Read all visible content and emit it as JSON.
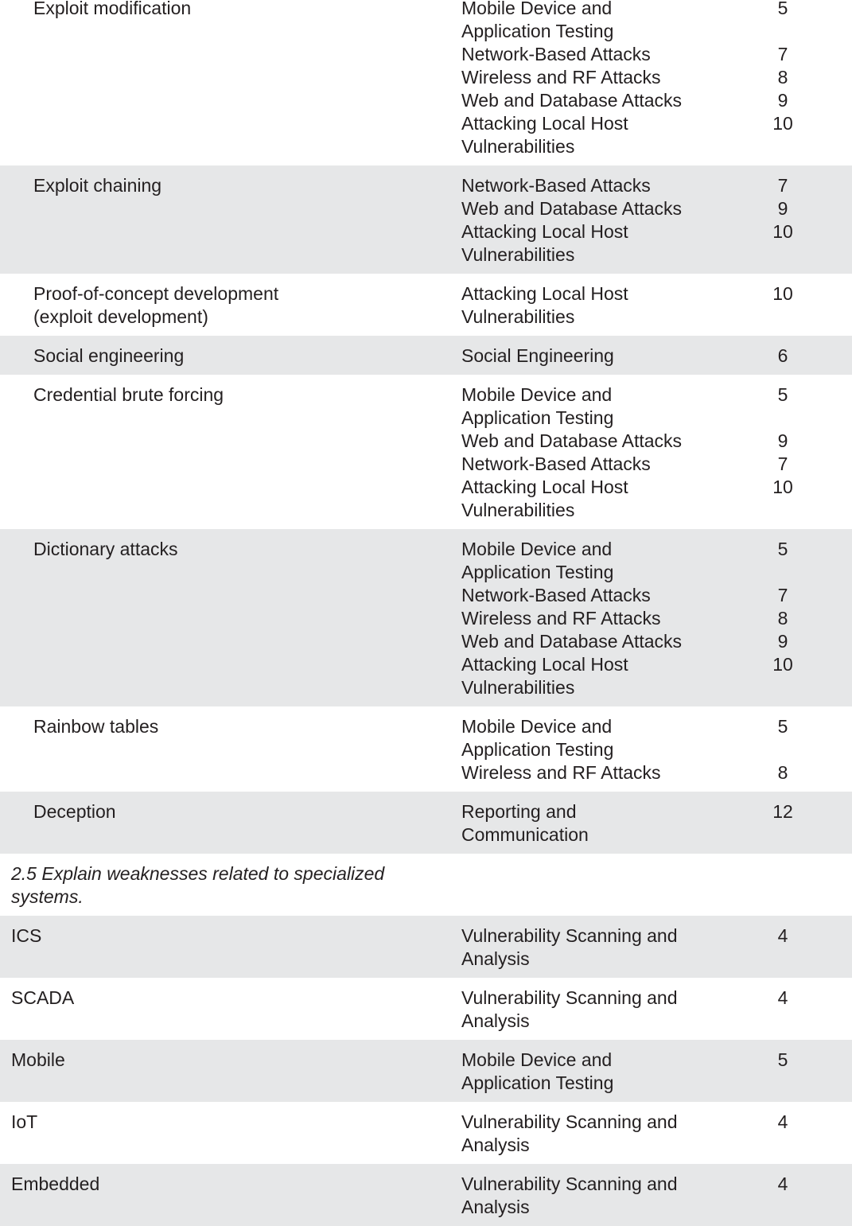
{
  "sections": [
    {
      "items": [
        {
          "label": "Exploit modification",
          "entries": [
            {
              "chapter": "Mobile Device and Application Testing",
              "number": 5
            },
            {
              "chapter": "Network-Based Attacks",
              "number": 7
            },
            {
              "chapter": "Wireless and RF Attacks",
              "number": 8
            },
            {
              "chapter": "Web and Database Attacks",
              "number": 9
            },
            {
              "chapter": "Attacking Local Host Vulnerabilities",
              "number": 10
            }
          ]
        },
        {
          "label": "Exploit chaining",
          "entries": [
            {
              "chapter": "Network-Based Attacks",
              "number": 7
            },
            {
              "chapter": "Web and Database Attacks",
              "number": 9
            },
            {
              "chapter": "Attacking Local Host Vulnerabilities",
              "number": 10
            }
          ]
        },
        {
          "label": "Proof-of-concept development (exploit development)",
          "entries": [
            {
              "chapter": "Attacking Local Host Vulnerabilities",
              "number": 10
            }
          ]
        },
        {
          "label": "Social engineering",
          "entries": [
            {
              "chapter": "Social Engineering",
              "number": 6
            }
          ]
        },
        {
          "label": "Credential brute forcing",
          "entries": [
            {
              "chapter": "Mobile Device and Application Testing",
              "number": 5
            },
            {
              "chapter": "Web and Database Attacks",
              "number": 9
            },
            {
              "chapter": "Network-Based Attacks",
              "number": 7
            },
            {
              "chapter": "Attacking Local Host Vulnerabilities",
              "number": 10
            }
          ]
        },
        {
          "label": "Dictionary attacks",
          "entries": [
            {
              "chapter": "Mobile Device and Application Testing",
              "number": 5
            },
            {
              "chapter": "Network-Based Attacks",
              "number": 7
            },
            {
              "chapter": "Wireless and RF Attacks",
              "number": 8
            },
            {
              "chapter": "Web and Database Attacks",
              "number": 9
            },
            {
              "chapter": "Attacking Local Host Vulnerabilities",
              "number": 10
            }
          ]
        },
        {
          "label": "Rainbow tables",
          "entries": [
            {
              "chapter": "Mobile Device and Application Testing",
              "number": 5
            },
            {
              "chapter": "Wireless and RF Attacks",
              "number": 8
            }
          ]
        },
        {
          "label": "Deception",
          "entries": [
            {
              "chapter": "Reporting and Communication",
              "number": 12
            }
          ]
        }
      ]
    },
    {
      "heading": "2.5 Explain weaknesses related to specialized systems.",
      "items": [
        {
          "label": "ICS",
          "entries": [
            {
              "chapter": "Vulnerability Scanning and Analysis",
              "number": 4
            }
          ]
        },
        {
          "label": "SCADA",
          "entries": [
            {
              "chapter": "Vulnerability Scanning and Analysis",
              "number": 4
            }
          ]
        },
        {
          "label": "Mobile",
          "entries": [
            {
              "chapter": "Mobile Device and Application Testing",
              "number": 5
            }
          ]
        },
        {
          "label": "IoT",
          "entries": [
            {
              "chapter": "Vulnerability Scanning and Analysis",
              "number": 4
            }
          ]
        },
        {
          "label": "Embedded",
          "entries": [
            {
              "chapter": "Vulnerability Scanning and Analysis",
              "number": 4
            }
          ]
        }
      ]
    }
  ]
}
